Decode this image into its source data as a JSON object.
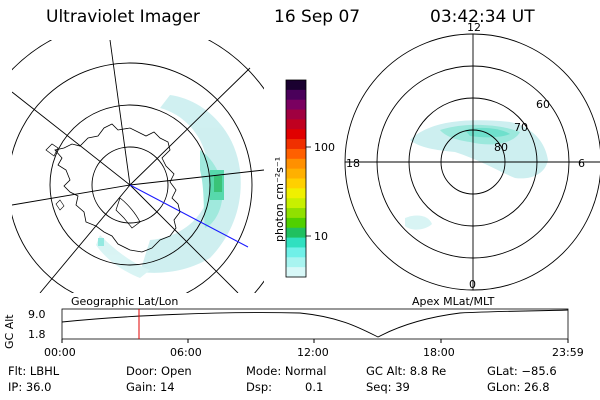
{
  "header": {
    "title": "Ultraviolet Imager",
    "date": "16 Sep 07",
    "time": "03:42:34 UT"
  },
  "left_map": {
    "caption": "Geographic Lat/Lon"
  },
  "right_map": {
    "caption": "Apex MLat/MLT",
    "mlt_labels": [
      "12",
      "18",
      "6",
      "0"
    ],
    "lat_labels": [
      "60",
      "70",
      "80"
    ]
  },
  "colorbar": {
    "unit_label": "photon cm⁻²s⁻¹",
    "tick_labels": [
      "100",
      "10"
    ],
    "colors": [
      "#1a0030",
      "#4a005a",
      "#7a0060",
      "#a00040",
      "#c00020",
      "#e00000",
      "#f03000",
      "#ff6000",
      "#ff9000",
      "#ffb000",
      "#ffd000",
      "#f0f000",
      "#c8f000",
      "#90e000",
      "#50d000",
      "#20c060",
      "#30e0c0",
      "#70f0e8",
      "#a8f4f0",
      "#d8f8f8"
    ]
  },
  "altitude_plot": {
    "ylabel": "GC Alt",
    "y_ticks": [
      "9.0",
      "1.8"
    ],
    "x_ticks": [
      "00:00",
      "06:00",
      "12:00",
      "18:00",
      "23:59"
    ],
    "marker_color": "#e00000"
  },
  "info": {
    "row1": {
      "flt": "Flt: LBHL",
      "door": "Door: Open",
      "mode": "Mode: Normal",
      "gc_alt": "GC Alt: 8.8 Re",
      "glat": "GLat: −85.6"
    },
    "row2": {
      "ip": "IP: 36.0",
      "gain": "Gain: 14",
      "dsp_label": "Dsp:",
      "dsp_value": "0.1",
      "seq": "Seq: 39",
      "glon": "GLon: 26.8"
    }
  }
}
